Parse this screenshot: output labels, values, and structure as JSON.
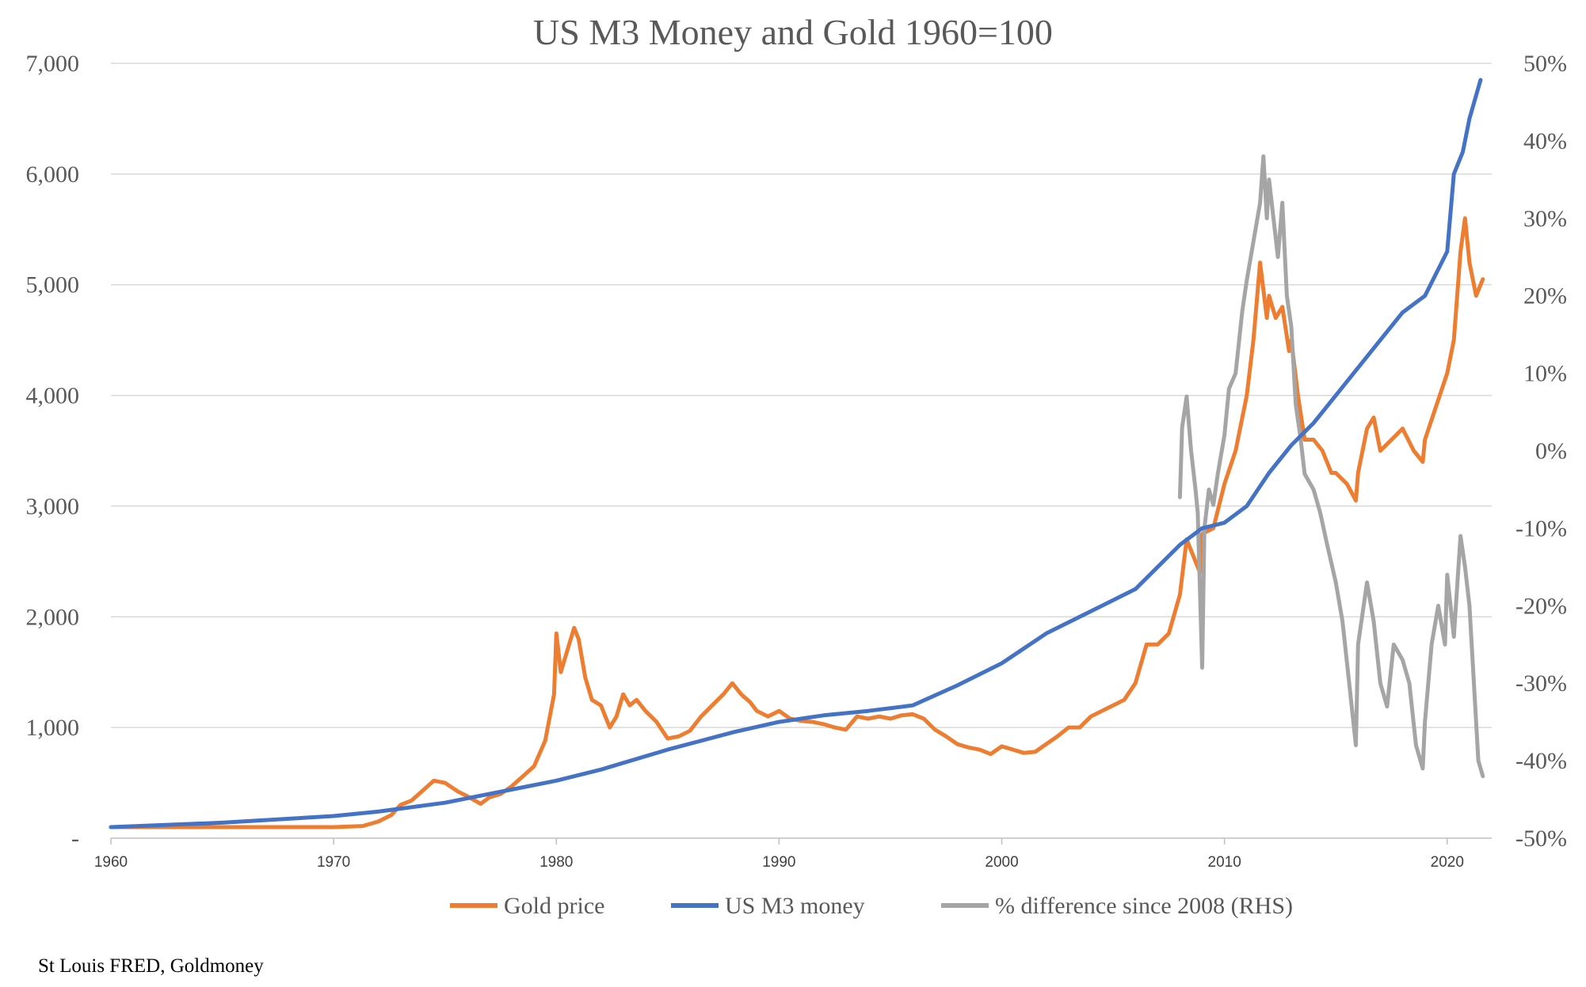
{
  "source_note": "St Louis FRED, Goldmoney",
  "colors": {
    "gold": "#ED7D31",
    "m3": "#4472C4",
    "diff": "#A5A5A5",
    "grid": "#D9D9D9",
    "text": "#595959"
  },
  "chart_data": {
    "type": "line",
    "title": "US M3 Money and Gold 1960=100",
    "xlabel": "",
    "ylabel": "",
    "xlim": [
      1960,
      2022
    ],
    "ylim_left": [
      0,
      7000
    ],
    "ylim_right": [
      -0.5,
      0.5
    ],
    "grid": true,
    "legend_position": "bottom",
    "x_ticks": [
      "1960",
      "1970",
      "1980",
      "1990",
      "2000",
      "2010",
      "2020"
    ],
    "y_left_ticks": [
      "-",
      "1,000",
      "2,000",
      "3,000",
      "4,000",
      "5,000",
      "6,000",
      "7,000"
    ],
    "y_right_ticks": [
      "-50%",
      "-40%",
      "-30%",
      "-20%",
      "-10%",
      "0%",
      "10%",
      "20%",
      "30%",
      "40%",
      "50%"
    ],
    "series": [
      {
        "name": "Gold price",
        "axis": "left",
        "points": [
          [
            1960,
            100
          ],
          [
            1965,
            100
          ],
          [
            1970,
            100
          ],
          [
            1971.3,
            110
          ],
          [
            1972,
            150
          ],
          [
            1972.6,
            210
          ],
          [
            1973,
            300
          ],
          [
            1973.5,
            340
          ],
          [
            1974,
            430
          ],
          [
            1974.5,
            520
          ],
          [
            1975,
            500
          ],
          [
            1975.6,
            420
          ],
          [
            1976,
            380
          ],
          [
            1976.6,
            310
          ],
          [
            1977,
            370
          ],
          [
            1977.5,
            400
          ],
          [
            1978,
            470
          ],
          [
            1978.5,
            560
          ],
          [
            1979,
            650
          ],
          [
            1979.5,
            880
          ],
          [
            1979.9,
            1300
          ],
          [
            1980,
            1850
          ],
          [
            1980.2,
            1500
          ],
          [
            1980.5,
            1700
          ],
          [
            1980.8,
            1900
          ],
          [
            1981,
            1800
          ],
          [
            1981.3,
            1450
          ],
          [
            1981.6,
            1250
          ],
          [
            1982,
            1200
          ],
          [
            1982.4,
            1000
          ],
          [
            1982.7,
            1100
          ],
          [
            1983,
            1300
          ],
          [
            1983.3,
            1200
          ],
          [
            1983.6,
            1250
          ],
          [
            1984,
            1150
          ],
          [
            1984.5,
            1050
          ],
          [
            1985,
            900
          ],
          [
            1985.5,
            920
          ],
          [
            1986,
            970
          ],
          [
            1986.5,
            1100
          ],
          [
            1987,
            1200
          ],
          [
            1987.5,
            1300
          ],
          [
            1987.9,
            1400
          ],
          [
            1988.3,
            1300
          ],
          [
            1988.7,
            1230
          ],
          [
            1989,
            1150
          ],
          [
            1989.5,
            1100
          ],
          [
            1990,
            1150
          ],
          [
            1990.5,
            1080
          ],
          [
            1991,
            1060
          ],
          [
            1991.5,
            1050
          ],
          [
            1992,
            1030
          ],
          [
            1992.5,
            1000
          ],
          [
            1993,
            980
          ],
          [
            1993.5,
            1100
          ],
          [
            1994,
            1080
          ],
          [
            1994.5,
            1100
          ],
          [
            1995,
            1080
          ],
          [
            1995.5,
            1110
          ],
          [
            1996,
            1120
          ],
          [
            1996.5,
            1080
          ],
          [
            1997,
            980
          ],
          [
            1997.5,
            920
          ],
          [
            1998,
            850
          ],
          [
            1998.5,
            820
          ],
          [
            1999,
            800
          ],
          [
            1999.5,
            760
          ],
          [
            2000,
            830
          ],
          [
            2000.5,
            800
          ],
          [
            2001,
            770
          ],
          [
            2001.5,
            780
          ],
          [
            2002,
            850
          ],
          [
            2002.5,
            920
          ],
          [
            2003,
            1000
          ],
          [
            2003.5,
            1000
          ],
          [
            2004,
            1100
          ],
          [
            2004.5,
            1150
          ],
          [
            2005,
            1200
          ],
          [
            2005.5,
            1250
          ],
          [
            2006,
            1400
          ],
          [
            2006.5,
            1750
          ],
          [
            2007,
            1750
          ],
          [
            2007.5,
            1850
          ],
          [
            2008,
            2200
          ],
          [
            2008.3,
            2700
          ],
          [
            2008.6,
            2550
          ],
          [
            2008.9,
            2400
          ],
          [
            2009,
            2750
          ],
          [
            2009.5,
            2800
          ],
          [
            2010,
            3200
          ],
          [
            2010.5,
            3500
          ],
          [
            2011,
            4000
          ],
          [
            2011.3,
            4500
          ],
          [
            2011.6,
            5200
          ],
          [
            2011.9,
            4700
          ],
          [
            2012,
            4900
          ],
          [
            2012.3,
            4700
          ],
          [
            2012.6,
            4800
          ],
          [
            2012.9,
            4400
          ],
          [
            2013,
            4500
          ],
          [
            2013.3,
            4000
          ],
          [
            2013.6,
            3600
          ],
          [
            2014,
            3600
          ],
          [
            2014.4,
            3500
          ],
          [
            2014.8,
            3300
          ],
          [
            2015,
            3300
          ],
          [
            2015.5,
            3200
          ],
          [
            2015.9,
            3050
          ],
          [
            2016,
            3300
          ],
          [
            2016.4,
            3700
          ],
          [
            2016.7,
            3800
          ],
          [
            2017,
            3500
          ],
          [
            2017.5,
            3600
          ],
          [
            2018,
            3700
          ],
          [
            2018.5,
            3500
          ],
          [
            2018.9,
            3400
          ],
          [
            2019,
            3600
          ],
          [
            2019.5,
            3900
          ],
          [
            2020,
            4200
          ],
          [
            2020.3,
            4500
          ],
          [
            2020.6,
            5300
          ],
          [
            2020.8,
            5600
          ],
          [
            2021,
            5200
          ],
          [
            2021.3,
            4900
          ],
          [
            2021.6,
            5050
          ]
        ]
      },
      {
        "name": "US M3 money",
        "axis": "left",
        "points": [
          [
            1960,
            100
          ],
          [
            1965,
            140
          ],
          [
            1970,
            200
          ],
          [
            1972,
            240
          ],
          [
            1975,
            320
          ],
          [
            1978,
            440
          ],
          [
            1980,
            520
          ],
          [
            1982,
            620
          ],
          [
            1985,
            800
          ],
          [
            1988,
            960
          ],
          [
            1990,
            1050
          ],
          [
            1992,
            1110
          ],
          [
            1994,
            1150
          ],
          [
            1996,
            1200
          ],
          [
            1998,
            1380
          ],
          [
            2000,
            1580
          ],
          [
            2002,
            1850
          ],
          [
            2004,
            2050
          ],
          [
            2006,
            2250
          ],
          [
            2008,
            2650
          ],
          [
            2009,
            2800
          ],
          [
            2010,
            2850
          ],
          [
            2011,
            3000
          ],
          [
            2012,
            3300
          ],
          [
            2013,
            3550
          ],
          [
            2014,
            3750
          ],
          [
            2015,
            4000
          ],
          [
            2016,
            4250
          ],
          [
            2017,
            4500
          ],
          [
            2018,
            4750
          ],
          [
            2019,
            4900
          ],
          [
            2020,
            5300
          ],
          [
            2020.3,
            6000
          ],
          [
            2020.7,
            6200
          ],
          [
            2021,
            6500
          ],
          [
            2021.5,
            6850
          ]
        ]
      },
      {
        "name": "% difference since 2008 (RHS)",
        "axis": "right",
        "points": [
          [
            2008,
            -0.06
          ],
          [
            2008.1,
            0.03
          ],
          [
            2008.3,
            0.07
          ],
          [
            2008.5,
            0.0
          ],
          [
            2008.7,
            -0.05
          ],
          [
            2008.8,
            -0.08
          ],
          [
            2008.9,
            -0.18
          ],
          [
            2009,
            -0.28
          ],
          [
            2009.1,
            -0.1
          ],
          [
            2009.3,
            -0.05
          ],
          [
            2009.5,
            -0.07
          ],
          [
            2009.7,
            -0.03
          ],
          [
            2010,
            0.02
          ],
          [
            2010.2,
            0.08
          ],
          [
            2010.5,
            0.1
          ],
          [
            2010.8,
            0.18
          ],
          [
            2011,
            0.22
          ],
          [
            2011.3,
            0.27
          ],
          [
            2011.6,
            0.32
          ],
          [
            2011.75,
            0.38
          ],
          [
            2011.9,
            0.3
          ],
          [
            2012,
            0.35
          ],
          [
            2012.2,
            0.3
          ],
          [
            2012.4,
            0.25
          ],
          [
            2012.6,
            0.32
          ],
          [
            2012.8,
            0.2
          ],
          [
            2013,
            0.16
          ],
          [
            2013.2,
            0.06
          ],
          [
            2013.4,
            0.02
          ],
          [
            2013.6,
            -0.03
          ],
          [
            2014,
            -0.05
          ],
          [
            2014.3,
            -0.08
          ],
          [
            2014.6,
            -0.12
          ],
          [
            2015,
            -0.17
          ],
          [
            2015.3,
            -0.22
          ],
          [
            2015.6,
            -0.3
          ],
          [
            2015.9,
            -0.38
          ],
          [
            2016,
            -0.25
          ],
          [
            2016.4,
            -0.17
          ],
          [
            2016.7,
            -0.22
          ],
          [
            2017,
            -0.3
          ],
          [
            2017.3,
            -0.33
          ],
          [
            2017.6,
            -0.25
          ],
          [
            2018,
            -0.27
          ],
          [
            2018.3,
            -0.3
          ],
          [
            2018.6,
            -0.38
          ],
          [
            2018.9,
            -0.41
          ],
          [
            2019,
            -0.35
          ],
          [
            2019.3,
            -0.25
          ],
          [
            2019.6,
            -0.2
          ],
          [
            2019.9,
            -0.25
          ],
          [
            2020,
            -0.16
          ],
          [
            2020.3,
            -0.24
          ],
          [
            2020.6,
            -0.11
          ],
          [
            2020.8,
            -0.15
          ],
          [
            2021,
            -0.2
          ],
          [
            2021.2,
            -0.3
          ],
          [
            2021.4,
            -0.4
          ],
          [
            2021.6,
            -0.42
          ]
        ]
      }
    ],
    "legend": [
      "Gold price",
      "US M3 money",
      "% difference since 2008 (RHS)"
    ]
  }
}
